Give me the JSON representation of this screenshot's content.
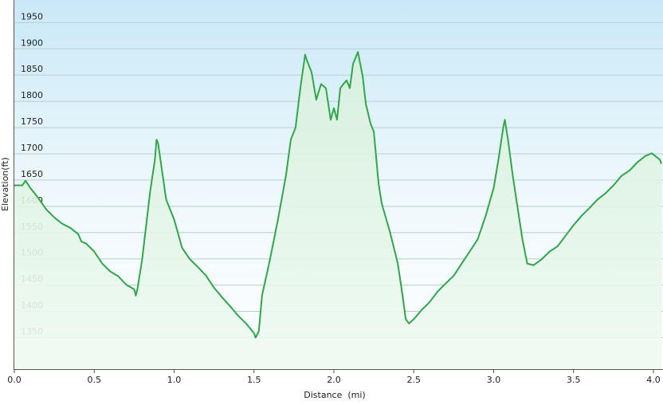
{
  "chart_data": {
    "type": "area",
    "x_label": "Distance  (mi)",
    "y_label": "Elevation(ft)",
    "x": [
      0,
      0.05,
      0.07,
      0.1,
      0.15,
      0.2,
      0.25,
      0.3,
      0.35,
      0.4,
      0.42,
      0.45,
      0.5,
      0.55,
      0.6,
      0.65,
      0.7,
      0.75,
      0.76,
      0.77,
      0.8,
      0.85,
      0.88,
      0.89,
      0.9,
      0.95,
      1.0,
      1.05,
      1.1,
      1.15,
      1.2,
      1.25,
      1.3,
      1.35,
      1.4,
      1.45,
      1.5,
      1.51,
      1.53,
      1.55,
      1.6,
      1.65,
      1.7,
      1.73,
      1.76,
      1.79,
      1.82,
      1.83,
      1.86,
      1.89,
      1.92,
      1.95,
      1.98,
      2.0,
      2.02,
      2.04,
      2.06,
      2.08,
      2.1,
      2.12,
      2.15,
      2.18,
      2.2,
      2.23,
      2.25,
      2.28,
      2.3,
      2.35,
      2.4,
      2.43,
      2.45,
      2.47,
      2.5,
      2.55,
      2.6,
      2.65,
      2.7,
      2.75,
      2.8,
      2.85,
      2.9,
      2.95,
      3.0,
      3.03,
      3.06,
      3.07,
      3.09,
      3.12,
      3.15,
      3.18,
      3.21,
      3.25,
      3.3,
      3.35,
      3.4,
      3.45,
      3.5,
      3.55,
      3.6,
      3.65,
      3.7,
      3.75,
      3.8,
      3.85,
      3.9,
      3.95,
      3.99,
      4.04,
      4.05
    ],
    "values": [
      1640,
      1640,
      1649,
      1635,
      1616,
      1594,
      1579,
      1567,
      1559,
      1547,
      1533,
      1529,
      1514,
      1491,
      1476,
      1467,
      1451,
      1442,
      1430,
      1442,
      1499,
      1628,
      1689,
      1727,
      1720,
      1613,
      1575,
      1521,
      1499,
      1484,
      1468,
      1445,
      1427,
      1410,
      1392,
      1377,
      1359,
      1350,
      1362,
      1430,
      1499,
      1575,
      1658,
      1727,
      1750,
      1825,
      1889,
      1879,
      1856,
      1803,
      1833,
      1825,
      1765,
      1787,
      1765,
      1825,
      1833,
      1840,
      1825,
      1871,
      1894,
      1848,
      1795,
      1757,
      1742,
      1643,
      1605,
      1552,
      1491,
      1430,
      1385,
      1377,
      1385,
      1403,
      1418,
      1438,
      1453,
      1468,
      1491,
      1514,
      1537,
      1582,
      1635,
      1689,
      1750,
      1765,
      1727,
      1658,
      1597,
      1537,
      1491,
      1488,
      1499,
      1514,
      1524,
      1544,
      1564,
      1582,
      1597,
      1613,
      1625,
      1640,
      1658,
      1668,
      1684,
      1696,
      1701,
      1689,
      1681
    ],
    "color": "#2ea84a",
    "xlim": [
      0,
      4.05
    ],
    "ylim": [
      1290,
      1993
    ],
    "xticks": [
      {
        "value": 0,
        "label": "0.0"
      },
      0.5,
      {
        "value": 1,
        "label": "1.0"
      },
      1.5,
      {
        "value": 2,
        "label": "2.0"
      },
      2.5,
      {
        "value": 3,
        "label": "3.0"
      },
      3.5,
      {
        "value": 4,
        "label": "4.0"
      }
    ],
    "yticks": [
      1350,
      1400,
      1450,
      1500,
      1550,
      1600,
      1650,
      1700,
      1750,
      1800,
      1850,
      1900,
      1950
    ],
    "grid": true
  }
}
